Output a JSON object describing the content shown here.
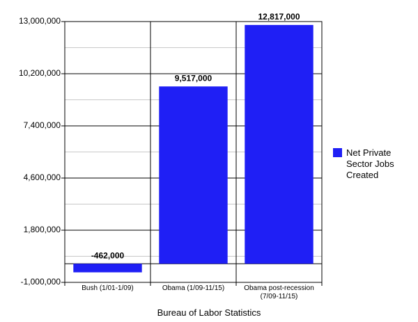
{
  "chart_data": {
    "type": "bar",
    "x_label": "Bureau of Labor Statistics",
    "categories": [
      "Bush (1/01-1/09)",
      "Obama (1/09-11/15)",
      "Obama post-recession (7/09-11/15)"
    ],
    "series": [
      {
        "name": "Net Private Sector Jobs Created",
        "color": "#1f1ff5",
        "values": [
          -462000,
          9517000,
          12817000
        ],
        "value_labels": [
          "-462,000",
          "9,517,000",
          "12,817,000"
        ]
      }
    ],
    "ylim": [
      -1000000,
      13000000
    ],
    "yticks": [
      {
        "value": -1000000,
        "label": "-1,000,000"
      },
      {
        "value": 1800000,
        "label": "1,800,000"
      },
      {
        "value": 4600000,
        "label": "4,600,000"
      },
      {
        "value": 7400000,
        "label": "7,400,000"
      },
      {
        "value": 10200000,
        "label": "10,200,000"
      },
      {
        "value": 13000000,
        "label": "13,000,000"
      }
    ],
    "minor_yticks": [
      400000,
      3200000,
      6000000,
      8800000,
      11600000
    ],
    "grid": true,
    "legend": "right"
  }
}
